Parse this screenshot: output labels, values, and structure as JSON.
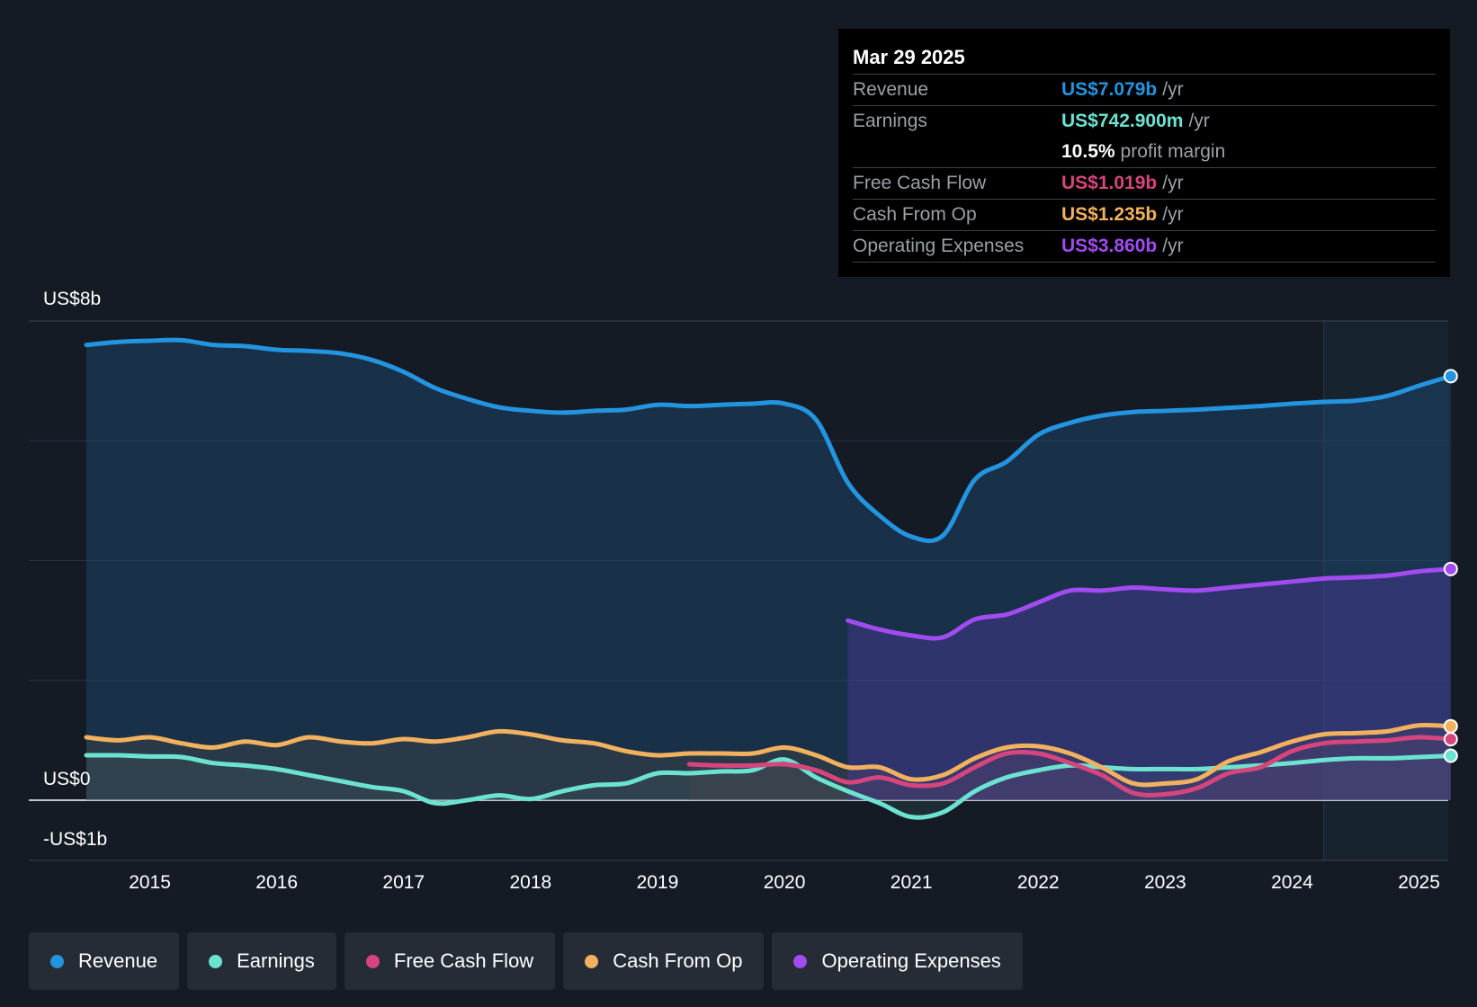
{
  "tooltip": {
    "date": "Mar 29 2025",
    "rows": [
      {
        "label": "Revenue",
        "value": "US$7.079b",
        "unit": "/yr",
        "color": "#2394df"
      },
      {
        "label": "Earnings",
        "value": "US$742.900m",
        "unit": "/yr",
        "color": "#6ce3d0"
      },
      {
        "label": "",
        "value": "10.5%",
        "unit": "profit margin",
        "color": "#ffffff"
      },
      {
        "label": "Free Cash Flow",
        "value": "US$1.019b",
        "unit": "/yr",
        "color": "#d7457d"
      },
      {
        "label": "Cash From Op",
        "value": "US$1.235b",
        "unit": "/yr",
        "color": "#f2b15e"
      },
      {
        "label": "Operating Expenses",
        "value": "US$3.860b",
        "unit": "/yr",
        "color": "#a14bf0"
      }
    ]
  },
  "chart_data": {
    "type": "area",
    "title": "",
    "y_unit_labels": {
      "top": "US$8b",
      "zero": "US$0",
      "bottom": "-US$1b"
    },
    "ylim": [
      -1,
      8
    ],
    "xlim": [
      2014.5,
      2025.25
    ],
    "x_ticks": [
      "2015",
      "2016",
      "2017",
      "2018",
      "2019",
      "2020",
      "2021",
      "2022",
      "2023",
      "2024",
      "2025"
    ],
    "forecast_region_start": 2024.25,
    "series": [
      {
        "name": "Revenue",
        "color": "#2394df",
        "points": [
          [
            2014.5,
            7.6
          ],
          [
            2014.75,
            7.65
          ],
          [
            2015.0,
            7.67
          ],
          [
            2015.25,
            7.68
          ],
          [
            2015.5,
            7.6
          ],
          [
            2015.75,
            7.58
          ],
          [
            2016.0,
            7.52
          ],
          [
            2016.25,
            7.5
          ],
          [
            2016.5,
            7.46
          ],
          [
            2016.75,
            7.35
          ],
          [
            2017.0,
            7.15
          ],
          [
            2017.25,
            6.88
          ],
          [
            2017.5,
            6.7
          ],
          [
            2017.75,
            6.56
          ],
          [
            2018.0,
            6.5
          ],
          [
            2018.25,
            6.47
          ],
          [
            2018.5,
            6.5
          ],
          [
            2018.75,
            6.52
          ],
          [
            2019.0,
            6.6
          ],
          [
            2019.25,
            6.58
          ],
          [
            2019.5,
            6.6
          ],
          [
            2019.75,
            6.62
          ],
          [
            2020.0,
            6.62
          ],
          [
            2020.25,
            6.35
          ],
          [
            2020.5,
            5.3
          ],
          [
            2020.75,
            4.75
          ],
          [
            2021.0,
            4.4
          ],
          [
            2021.25,
            4.42
          ],
          [
            2021.5,
            5.35
          ],
          [
            2021.75,
            5.65
          ],
          [
            2022.0,
            6.1
          ],
          [
            2022.25,
            6.3
          ],
          [
            2022.5,
            6.42
          ],
          [
            2022.75,
            6.48
          ],
          [
            2023.0,
            6.5
          ],
          [
            2023.25,
            6.52
          ],
          [
            2023.5,
            6.55
          ],
          [
            2023.75,
            6.58
          ],
          [
            2024.0,
            6.62
          ],
          [
            2024.25,
            6.65
          ],
          [
            2024.5,
            6.67
          ],
          [
            2024.75,
            6.75
          ],
          [
            2025.0,
            6.92
          ],
          [
            2025.25,
            7.079
          ]
        ]
      },
      {
        "name": "Earnings",
        "color": "#6ce3d0",
        "points": [
          [
            2014.5,
            0.75
          ],
          [
            2014.75,
            0.75
          ],
          [
            2015.0,
            0.73
          ],
          [
            2015.25,
            0.72
          ],
          [
            2015.5,
            0.62
          ],
          [
            2015.75,
            0.58
          ],
          [
            2016.0,
            0.52
          ],
          [
            2016.25,
            0.42
          ],
          [
            2016.5,
            0.32
          ],
          [
            2016.75,
            0.22
          ],
          [
            2017.0,
            0.15
          ],
          [
            2017.25,
            -0.05
          ],
          [
            2017.5,
            0.0
          ],
          [
            2017.75,
            0.08
          ],
          [
            2018.0,
            0.02
          ],
          [
            2018.25,
            0.15
          ],
          [
            2018.5,
            0.25
          ],
          [
            2018.75,
            0.28
          ],
          [
            2019.0,
            0.45
          ],
          [
            2019.25,
            0.45
          ],
          [
            2019.5,
            0.48
          ],
          [
            2019.75,
            0.5
          ],
          [
            2020.0,
            0.68
          ],
          [
            2020.25,
            0.38
          ],
          [
            2020.5,
            0.15
          ],
          [
            2020.75,
            -0.05
          ],
          [
            2021.0,
            -0.28
          ],
          [
            2021.25,
            -0.2
          ],
          [
            2021.5,
            0.15
          ],
          [
            2021.75,
            0.38
          ],
          [
            2022.0,
            0.5
          ],
          [
            2022.25,
            0.58
          ],
          [
            2022.5,
            0.55
          ],
          [
            2022.75,
            0.52
          ],
          [
            2023.0,
            0.52
          ],
          [
            2023.25,
            0.52
          ],
          [
            2023.5,
            0.55
          ],
          [
            2023.75,
            0.58
          ],
          [
            2024.0,
            0.62
          ],
          [
            2024.25,
            0.67
          ],
          [
            2024.5,
            0.7
          ],
          [
            2024.75,
            0.7
          ],
          [
            2025.0,
            0.72
          ],
          [
            2025.25,
            0.743
          ]
        ]
      },
      {
        "name": "Free Cash Flow",
        "color": "#d7457d",
        "points": [
          [
            2019.25,
            0.6
          ],
          [
            2019.5,
            0.58
          ],
          [
            2019.75,
            0.58
          ],
          [
            2020.0,
            0.6
          ],
          [
            2020.25,
            0.5
          ],
          [
            2020.5,
            0.3
          ],
          [
            2020.75,
            0.38
          ],
          [
            2021.0,
            0.25
          ],
          [
            2021.25,
            0.28
          ],
          [
            2021.5,
            0.55
          ],
          [
            2021.75,
            0.78
          ],
          [
            2022.0,
            0.78
          ],
          [
            2022.25,
            0.62
          ],
          [
            2022.5,
            0.42
          ],
          [
            2022.75,
            0.12
          ],
          [
            2023.0,
            0.1
          ],
          [
            2023.25,
            0.2
          ],
          [
            2023.5,
            0.45
          ],
          [
            2023.75,
            0.55
          ],
          [
            2024.0,
            0.82
          ],
          [
            2024.25,
            0.95
          ],
          [
            2024.5,
            0.98
          ],
          [
            2024.75,
            1.0
          ],
          [
            2025.0,
            1.05
          ],
          [
            2025.25,
            1.019
          ]
        ]
      },
      {
        "name": "Cash From Op",
        "color": "#f2b15e",
        "points": [
          [
            2014.5,
            1.05
          ],
          [
            2014.75,
            1.0
          ],
          [
            2015.0,
            1.05
          ],
          [
            2015.25,
            0.95
          ],
          [
            2015.5,
            0.88
          ],
          [
            2015.75,
            0.98
          ],
          [
            2016.0,
            0.92
          ],
          [
            2016.25,
            1.05
          ],
          [
            2016.5,
            0.98
          ],
          [
            2016.75,
            0.95
          ],
          [
            2017.0,
            1.02
          ],
          [
            2017.25,
            0.98
          ],
          [
            2017.5,
            1.05
          ],
          [
            2017.75,
            1.15
          ],
          [
            2018.0,
            1.1
          ],
          [
            2018.25,
            1.0
          ],
          [
            2018.5,
            0.95
          ],
          [
            2018.75,
            0.82
          ],
          [
            2019.0,
            0.75
          ],
          [
            2019.25,
            0.78
          ],
          [
            2019.5,
            0.78
          ],
          [
            2019.75,
            0.78
          ],
          [
            2020.0,
            0.88
          ],
          [
            2020.25,
            0.75
          ],
          [
            2020.5,
            0.55
          ],
          [
            2020.75,
            0.55
          ],
          [
            2021.0,
            0.35
          ],
          [
            2021.25,
            0.42
          ],
          [
            2021.5,
            0.7
          ],
          [
            2021.75,
            0.88
          ],
          [
            2022.0,
            0.9
          ],
          [
            2022.25,
            0.78
          ],
          [
            2022.5,
            0.55
          ],
          [
            2022.75,
            0.28
          ],
          [
            2023.0,
            0.28
          ],
          [
            2023.25,
            0.35
          ],
          [
            2023.5,
            0.65
          ],
          [
            2023.75,
            0.8
          ],
          [
            2024.0,
            0.98
          ],
          [
            2024.25,
            1.1
          ],
          [
            2024.5,
            1.12
          ],
          [
            2024.75,
            1.15
          ],
          [
            2025.0,
            1.25
          ],
          [
            2025.25,
            1.235
          ]
        ]
      },
      {
        "name": "Operating Expenses",
        "color": "#a14bf0",
        "points": [
          [
            2020.5,
            3.0
          ],
          [
            2020.75,
            2.85
          ],
          [
            2021.0,
            2.75
          ],
          [
            2021.25,
            2.72
          ],
          [
            2021.5,
            3.02
          ],
          [
            2021.75,
            3.1
          ],
          [
            2022.0,
            3.3
          ],
          [
            2022.25,
            3.5
          ],
          [
            2022.5,
            3.5
          ],
          [
            2022.75,
            3.55
          ],
          [
            2023.0,
            3.52
          ],
          [
            2023.25,
            3.5
          ],
          [
            2023.5,
            3.55
          ],
          [
            2023.75,
            3.6
          ],
          [
            2024.0,
            3.65
          ],
          [
            2024.25,
            3.7
          ],
          [
            2024.5,
            3.72
          ],
          [
            2024.75,
            3.75
          ],
          [
            2025.0,
            3.82
          ],
          [
            2025.25,
            3.86
          ]
        ]
      }
    ]
  },
  "legend": [
    {
      "label": "Revenue",
      "color": "#2394df"
    },
    {
      "label": "Earnings",
      "color": "#6ce3d0"
    },
    {
      "label": "Free Cash Flow",
      "color": "#d7457d"
    },
    {
      "label": "Cash From Op",
      "color": "#f2b15e"
    },
    {
      "label": "Operating Expenses",
      "color": "#a14bf0"
    }
  ]
}
